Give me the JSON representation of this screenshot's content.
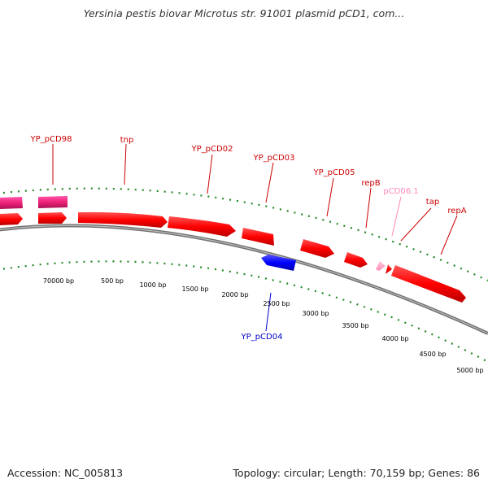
{
  "title": "Yersinia pestis biovar Microtus str. 91001 plasmid pCD1, com...",
  "footer": {
    "accession": "Accession: NC_005813",
    "topology": "Topology: circular; Length: 70,159 bp; Genes: 86"
  },
  "colors": {
    "gene_forward": "#ff0000",
    "gene_reverse": "#0000ff",
    "gene_magenta": "#ee2277",
    "gene_pink": "#ff88bb",
    "label_red": "#cc0000",
    "label_blue": "#0000cc",
    "label_pink": "#ff88bb",
    "ticks": "#228822",
    "backbone": "#888888"
  },
  "genes": [
    {
      "name": "YP_pCD98",
      "strand": "forward",
      "color": "magenta"
    },
    {
      "name": "tnp",
      "strand": "forward",
      "color": "red"
    },
    {
      "name": "YP_pCD02",
      "strand": "forward",
      "color": "red"
    },
    {
      "name": "YP_pCD03",
      "strand": "forward",
      "color": "red"
    },
    {
      "name": "YP_pCD04",
      "strand": "reverse",
      "color": "blue"
    },
    {
      "name": "YP_pCD05",
      "strand": "forward",
      "color": "red"
    },
    {
      "name": "repB",
      "strand": "forward",
      "color": "red"
    },
    {
      "name": "pCD06.1",
      "strand": "forward",
      "color": "pink"
    },
    {
      "name": "tap",
      "strand": "forward",
      "color": "red"
    },
    {
      "name": "repA",
      "strand": "forward",
      "color": "red"
    }
  ],
  "bp_labels": [
    "70000 bp",
    "500 bp",
    "1000 bp",
    "1500 bp",
    "2000 bp",
    "2500 bp",
    "3000 bp",
    "3500 bp",
    "4000 bp",
    "4500 bp",
    "5000 bp"
  ]
}
